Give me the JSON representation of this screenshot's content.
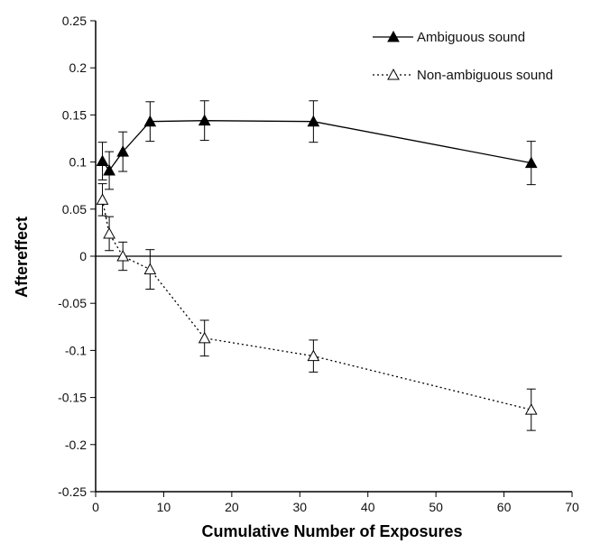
{
  "chart_data": {
    "type": "line",
    "title": "",
    "xlabel": "Cumulative Number of Exposures",
    "ylabel": "Aftereffect",
    "xlim": [
      0,
      70
    ],
    "ylim": [
      -0.25,
      0.25
    ],
    "x_ticks": [
      0,
      10,
      20,
      30,
      40,
      50,
      60,
      70
    ],
    "y_ticks": [
      0.25,
      0.2,
      0.15,
      0.1,
      0.05,
      0,
      -0.05,
      -0.1,
      -0.15,
      -0.2,
      -0.25
    ],
    "x_tick_labels": [
      "0",
      "10",
      "20",
      "30",
      "40",
      "50",
      "60",
      "70"
    ],
    "y_tick_labels": [
      "0.25",
      "0.2",
      "0.15",
      "0.1",
      "0.05",
      "0",
      "-0.05",
      "-0.1",
      "-0.15",
      "-0.2",
      "-0.25"
    ],
    "reference_line_y": 0,
    "grid": false,
    "legend_position": "top-right",
    "series": [
      {
        "name": "Ambiguous sound",
        "marker": "filled-triangle",
        "line_style": "solid",
        "color": "#000000",
        "x": [
          1,
          2,
          4,
          8,
          16,
          32,
          64
        ],
        "y": [
          0.101,
          0.091,
          0.111,
          0.143,
          0.144,
          0.143,
          0.099
        ],
        "error": [
          0.02,
          0.02,
          0.021,
          0.021,
          0.021,
          0.022,
          0.023
        ]
      },
      {
        "name": "Non-ambiguous sound",
        "marker": "open-triangle",
        "line_style": "dotted",
        "color": "#000000",
        "x": [
          1,
          2,
          4,
          8,
          16,
          32,
          64
        ],
        "y": [
          0.06,
          0.024,
          0.0,
          -0.014,
          -0.087,
          -0.106,
          -0.163
        ],
        "error": [
          0.017,
          0.018,
          0.015,
          0.021,
          0.019,
          0.017,
          0.022
        ]
      }
    ]
  }
}
